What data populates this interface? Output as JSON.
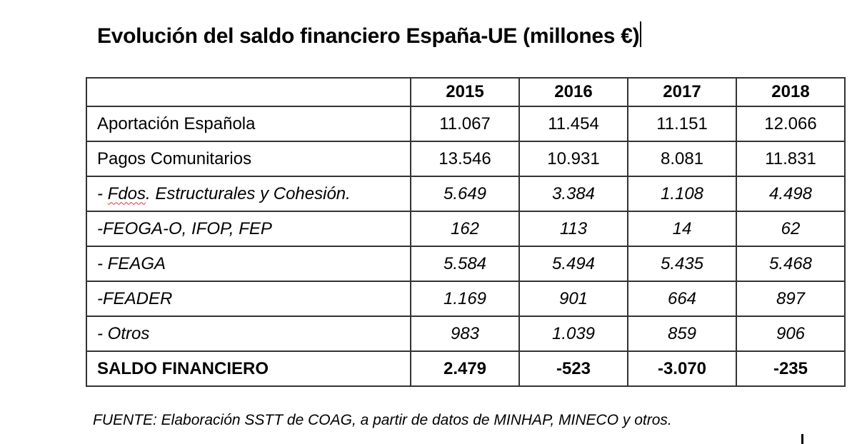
{
  "title": "Evolución del saldo financiero España-UE (millones €)",
  "table": {
    "header": [
      "",
      "2015",
      "2016",
      "2017",
      "2018"
    ],
    "rows": [
      {
        "label": "Aportación Española",
        "values": [
          "11.067",
          "11.454",
          "11.151",
          "12.066"
        ],
        "style": "normal"
      },
      {
        "label": "Pagos Comunitarios",
        "values": [
          "13.546",
          "10.931",
          "8.081",
          "11.831"
        ],
        "style": "normal"
      },
      {
        "label_prefix": "- ",
        "label_spell": "Fdos",
        "label": ". Estructurales y Cohesión.",
        "values": [
          "5.649",
          "3.384",
          "1.108",
          "4.498"
        ],
        "style": "italic"
      },
      {
        "label": "-FEOGA-O, IFOP, FEP",
        "values": [
          "162",
          "113",
          "14",
          "62"
        ],
        "style": "italic"
      },
      {
        "label": "- FEAGA",
        "values": [
          "5.584",
          "5.494",
          "5.435",
          "5.468"
        ],
        "style": "italic"
      },
      {
        "label": "-FEADER",
        "values": [
          "1.169",
          "901",
          "664",
          "897"
        ],
        "style": "italic"
      },
      {
        "label": "- Otros",
        "values": [
          "983",
          "1.039",
          "859",
          "906"
        ],
        "style": "italic"
      },
      {
        "label": "SALDO FINANCIERO",
        "values": [
          "2.479",
          "-523",
          "-3.070",
          "-235"
        ],
        "style": "bold"
      }
    ]
  },
  "source": "FUENTE: Elaboración SSTT de COAG, a partir de datos de  MINHAP, MINECO y otros."
}
